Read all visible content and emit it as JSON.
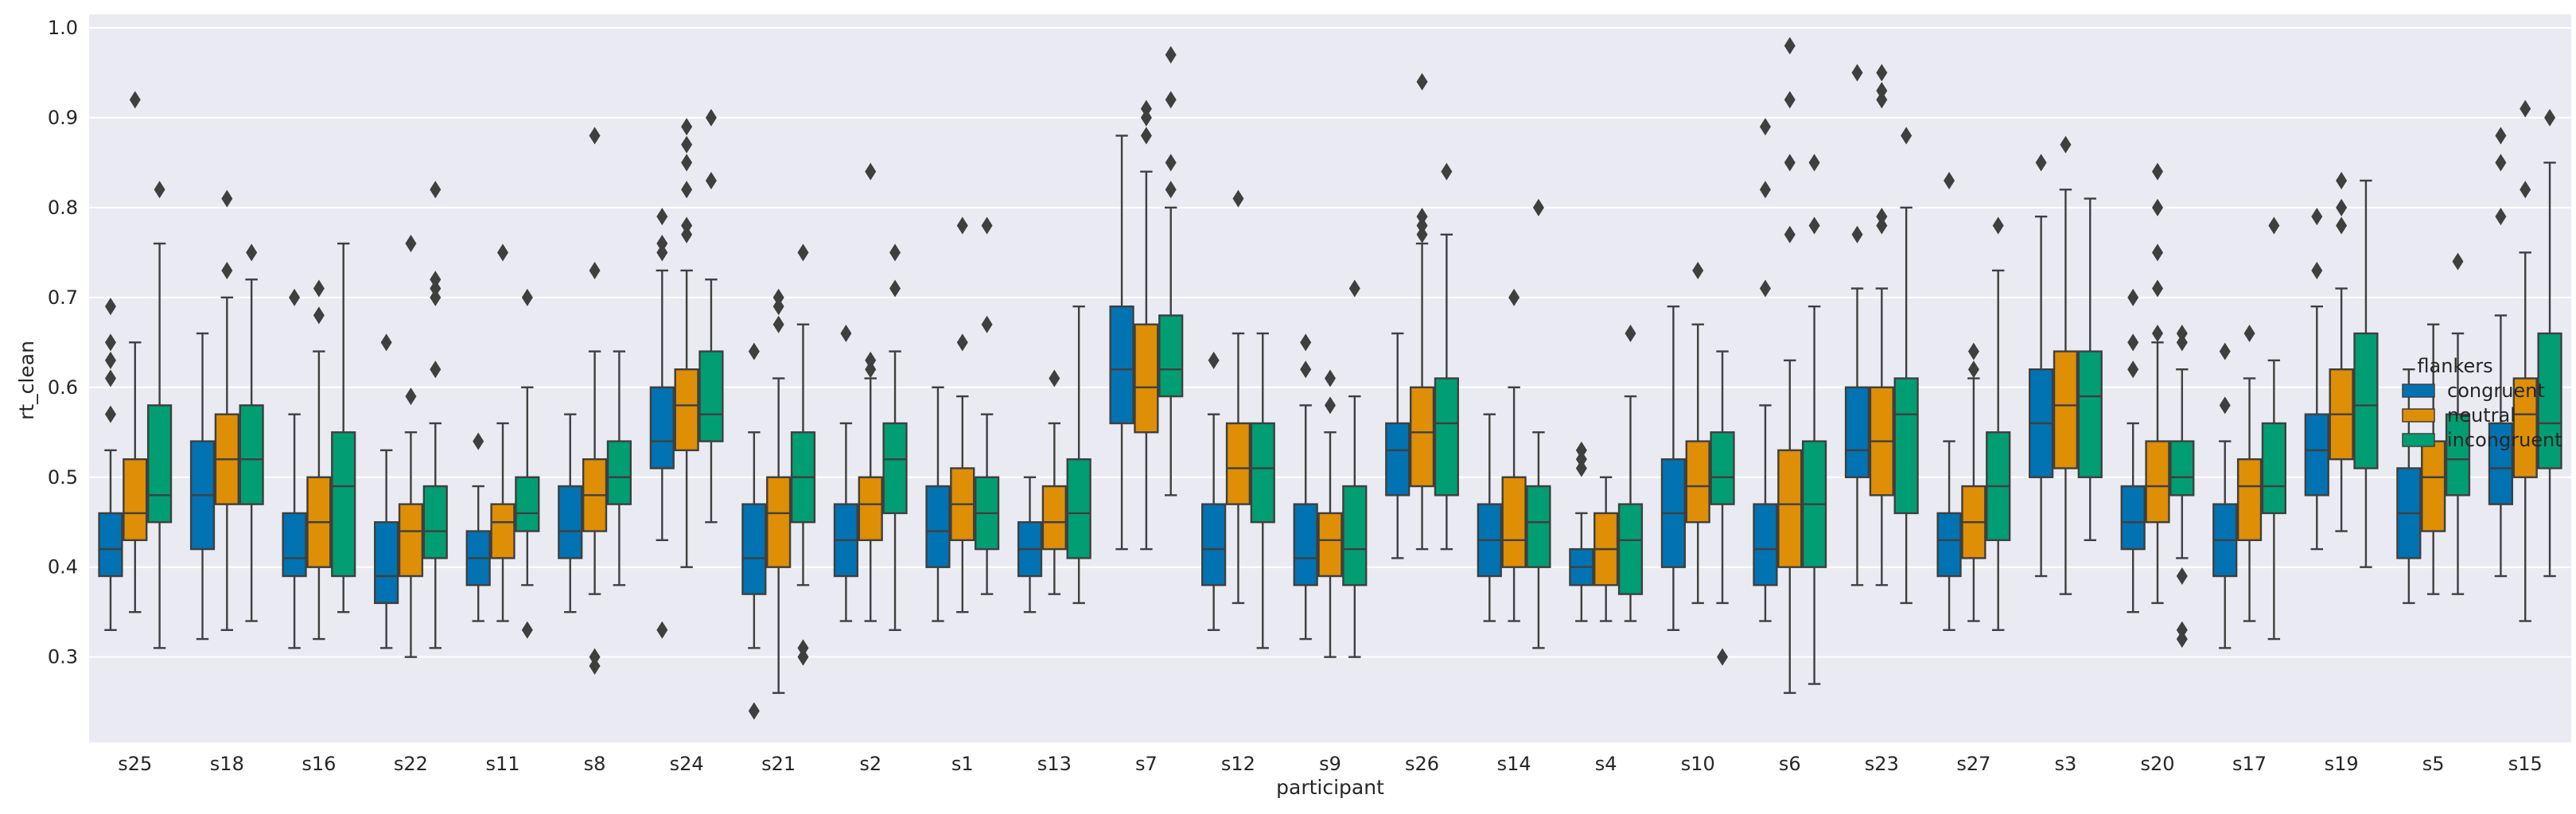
{
  "chart_data": {
    "type": "box",
    "xlabel": "participant",
    "ylabel": "rt_clean",
    "ylim": [
      0.205,
      1.015
    ],
    "yticks": [
      0.3,
      0.4,
      0.5,
      0.6,
      0.7,
      0.8,
      0.9,
      1.0
    ],
    "ytick_labels": [
      "0.3",
      "0.4",
      "0.5",
      "0.6",
      "0.7",
      "0.8",
      "0.9",
      "1.0"
    ],
    "grid": true,
    "legend": {
      "title": "flankers",
      "placement": "right",
      "entries": [
        "congruent",
        "neutral",
        "incongruent"
      ]
    },
    "series_colors": [
      "#0173b2",
      "#de8f05",
      "#029e73"
    ],
    "background": "#eaeaf2",
    "categories": [
      "s25",
      "s18",
      "s16",
      "s22",
      "s11",
      "s8",
      "s24",
      "s21",
      "s2",
      "s1",
      "s13",
      "s7",
      "s12",
      "s9",
      "s26",
      "s14",
      "s4",
      "s10",
      "s6",
      "s23",
      "s27",
      "s3",
      "s20",
      "s17",
      "s19",
      "s5",
      "s15"
    ],
    "boxes": [
      [
        {
          "q1": 0.39,
          "med": 0.42,
          "q3": 0.46,
          "wlo": 0.33,
          "whi": 0.53,
          "out": [
            0.57,
            0.61,
            0.63,
            0.65,
            0.69
          ]
        },
        {
          "q1": 0.43,
          "med": 0.46,
          "q3": 0.52,
          "wlo": 0.35,
          "whi": 0.65,
          "out": [
            0.92
          ]
        },
        {
          "q1": 0.45,
          "med": 0.48,
          "q3": 0.58,
          "wlo": 0.31,
          "whi": 0.76,
          "out": [
            0.82
          ]
        }
      ],
      [
        {
          "q1": 0.42,
          "med": 0.48,
          "q3": 0.54,
          "wlo": 0.32,
          "whi": 0.66,
          "out": []
        },
        {
          "q1": 0.47,
          "med": 0.52,
          "q3": 0.57,
          "wlo": 0.33,
          "whi": 0.7,
          "out": [
            0.73,
            0.81
          ]
        },
        {
          "q1": 0.47,
          "med": 0.52,
          "q3": 0.58,
          "wlo": 0.34,
          "whi": 0.72,
          "out": [
            0.75
          ]
        }
      ],
      [
        {
          "q1": 0.39,
          "med": 0.41,
          "q3": 0.46,
          "wlo": 0.31,
          "whi": 0.57,
          "out": [
            0.7
          ]
        },
        {
          "q1": 0.4,
          "med": 0.45,
          "q3": 0.5,
          "wlo": 0.32,
          "whi": 0.64,
          "out": [
            0.68,
            0.71
          ]
        },
        {
          "q1": 0.39,
          "med": 0.49,
          "q3": 0.55,
          "wlo": 0.35,
          "whi": 0.76,
          "out": []
        }
      ],
      [
        {
          "q1": 0.36,
          "med": 0.39,
          "q3": 0.45,
          "wlo": 0.31,
          "whi": 0.53,
          "out": [
            0.65
          ]
        },
        {
          "q1": 0.39,
          "med": 0.44,
          "q3": 0.47,
          "wlo": 0.3,
          "whi": 0.55,
          "out": [
            0.59,
            0.76
          ]
        },
        {
          "q1": 0.41,
          "med": 0.44,
          "q3": 0.49,
          "wlo": 0.31,
          "whi": 0.56,
          "out": [
            0.62,
            0.7,
            0.71,
            0.72,
            0.82
          ]
        }
      ],
      [
        {
          "q1": 0.38,
          "med": 0.41,
          "q3": 0.44,
          "wlo": 0.34,
          "whi": 0.49,
          "out": [
            0.54
          ]
        },
        {
          "q1": 0.41,
          "med": 0.45,
          "q3": 0.47,
          "wlo": 0.34,
          "whi": 0.56,
          "out": [
            0.75
          ]
        },
        {
          "q1": 0.44,
          "med": 0.46,
          "q3": 0.5,
          "wlo": 0.38,
          "whi": 0.6,
          "out": [
            0.33,
            0.7
          ]
        }
      ],
      [
        {
          "q1": 0.41,
          "med": 0.44,
          "q3": 0.49,
          "wlo": 0.35,
          "whi": 0.57,
          "out": []
        },
        {
          "q1": 0.44,
          "med": 0.48,
          "q3": 0.52,
          "wlo": 0.37,
          "whi": 0.64,
          "out": [
            0.29,
            0.3,
            0.73,
            0.88
          ]
        },
        {
          "q1": 0.47,
          "med": 0.5,
          "q3": 0.54,
          "wlo": 0.38,
          "whi": 0.64,
          "out": []
        }
      ],
      [
        {
          "q1": 0.51,
          "med": 0.54,
          "q3": 0.6,
          "wlo": 0.43,
          "whi": 0.73,
          "out": [
            0.33,
            0.75,
            0.76,
            0.79
          ]
        },
        {
          "q1": 0.53,
          "med": 0.58,
          "q3": 0.62,
          "wlo": 0.4,
          "whi": 0.73,
          "out": [
            0.77,
            0.78,
            0.82,
            0.85,
            0.87,
            0.89
          ]
        },
        {
          "q1": 0.54,
          "med": 0.57,
          "q3": 0.64,
          "wlo": 0.45,
          "whi": 0.72,
          "out": [
            0.83,
            0.9
          ]
        }
      ],
      [
        {
          "q1": 0.37,
          "med": 0.41,
          "q3": 0.47,
          "wlo": 0.31,
          "whi": 0.55,
          "out": [
            0.24,
            0.64
          ]
        },
        {
          "q1": 0.4,
          "med": 0.46,
          "q3": 0.5,
          "wlo": 0.26,
          "whi": 0.61,
          "out": [
            0.67,
            0.69,
            0.7
          ]
        },
        {
          "q1": 0.45,
          "med": 0.5,
          "q3": 0.55,
          "wlo": 0.38,
          "whi": 0.67,
          "out": [
            0.3,
            0.31,
            0.75
          ]
        }
      ],
      [
        {
          "q1": 0.39,
          "med": 0.43,
          "q3": 0.47,
          "wlo": 0.34,
          "whi": 0.56,
          "out": [
            0.66
          ]
        },
        {
          "q1": 0.43,
          "med": 0.47,
          "q3": 0.5,
          "wlo": 0.34,
          "whi": 0.61,
          "out": [
            0.62,
            0.63,
            0.84
          ]
        },
        {
          "q1": 0.46,
          "med": 0.52,
          "q3": 0.56,
          "wlo": 0.33,
          "whi": 0.64,
          "out": [
            0.71,
            0.75
          ]
        }
      ],
      [
        {
          "q1": 0.4,
          "med": 0.44,
          "q3": 0.49,
          "wlo": 0.34,
          "whi": 0.6,
          "out": []
        },
        {
          "q1": 0.43,
          "med": 0.47,
          "q3": 0.51,
          "wlo": 0.35,
          "whi": 0.59,
          "out": [
            0.65,
            0.78
          ]
        },
        {
          "q1": 0.42,
          "med": 0.46,
          "q3": 0.5,
          "wlo": 0.37,
          "whi": 0.57,
          "out": [
            0.67,
            0.78
          ]
        }
      ],
      [
        {
          "q1": 0.39,
          "med": 0.42,
          "q3": 0.45,
          "wlo": 0.35,
          "whi": 0.5,
          "out": []
        },
        {
          "q1": 0.42,
          "med": 0.45,
          "q3": 0.49,
          "wlo": 0.37,
          "whi": 0.56,
          "out": [
            0.61
          ]
        },
        {
          "q1": 0.41,
          "med": 0.46,
          "q3": 0.52,
          "wlo": 0.36,
          "whi": 0.69,
          "out": []
        }
      ],
      [
        {
          "q1": 0.56,
          "med": 0.62,
          "q3": 0.69,
          "wlo": 0.42,
          "whi": 0.88,
          "out": []
        },
        {
          "q1": 0.55,
          "med": 0.6,
          "q3": 0.67,
          "wlo": 0.42,
          "whi": 0.84,
          "out": [
            0.88,
            0.9,
            0.91
          ]
        },
        {
          "q1": 0.59,
          "med": 0.62,
          "q3": 0.68,
          "wlo": 0.48,
          "whi": 0.8,
          "out": [
            0.82,
            0.85,
            0.92,
            0.97
          ]
        }
      ],
      [
        {
          "q1": 0.38,
          "med": 0.42,
          "q3": 0.47,
          "wlo": 0.33,
          "whi": 0.57,
          "out": [
            0.63
          ]
        },
        {
          "q1": 0.47,
          "med": 0.51,
          "q3": 0.56,
          "wlo": 0.36,
          "whi": 0.66,
          "out": [
            0.81
          ]
        },
        {
          "q1": 0.45,
          "med": 0.51,
          "q3": 0.56,
          "wlo": 0.31,
          "whi": 0.66,
          "out": []
        }
      ],
      [
        {
          "q1": 0.38,
          "med": 0.41,
          "q3": 0.47,
          "wlo": 0.32,
          "whi": 0.58,
          "out": [
            0.62,
            0.65
          ]
        },
        {
          "q1": 0.39,
          "med": 0.43,
          "q3": 0.46,
          "wlo": 0.3,
          "whi": 0.55,
          "out": [
            0.58,
            0.61
          ]
        },
        {
          "q1": 0.38,
          "med": 0.42,
          "q3": 0.49,
          "wlo": 0.3,
          "whi": 0.59,
          "out": [
            0.71
          ]
        }
      ],
      [
        {
          "q1": 0.48,
          "med": 0.53,
          "q3": 0.56,
          "wlo": 0.41,
          "whi": 0.66,
          "out": []
        },
        {
          "q1": 0.49,
          "med": 0.55,
          "q3": 0.6,
          "wlo": 0.42,
          "whi": 0.76,
          "out": [
            0.77,
            0.78,
            0.79,
            0.94
          ]
        },
        {
          "q1": 0.48,
          "med": 0.56,
          "q3": 0.61,
          "wlo": 0.42,
          "whi": 0.77,
          "out": [
            0.84
          ]
        }
      ],
      [
        {
          "q1": 0.39,
          "med": 0.43,
          "q3": 0.47,
          "wlo": 0.34,
          "whi": 0.57,
          "out": []
        },
        {
          "q1": 0.4,
          "med": 0.43,
          "q3": 0.5,
          "wlo": 0.34,
          "whi": 0.6,
          "out": [
            0.7
          ]
        },
        {
          "q1": 0.4,
          "med": 0.45,
          "q3": 0.49,
          "wlo": 0.31,
          "whi": 0.55,
          "out": [
            0.8
          ]
        }
      ],
      [
        {
          "q1": 0.38,
          "med": 0.4,
          "q3": 0.42,
          "wlo": 0.34,
          "whi": 0.46,
          "out": [
            0.51,
            0.52,
            0.53
          ]
        },
        {
          "q1": 0.38,
          "med": 0.42,
          "q3": 0.46,
          "wlo": 0.34,
          "whi": 0.5,
          "out": []
        },
        {
          "q1": 0.37,
          "med": 0.43,
          "q3": 0.47,
          "wlo": 0.34,
          "whi": 0.59,
          "out": [
            0.66
          ]
        }
      ],
      [
        {
          "q1": 0.4,
          "med": 0.46,
          "q3": 0.52,
          "wlo": 0.33,
          "whi": 0.69,
          "out": []
        },
        {
          "q1": 0.45,
          "med": 0.49,
          "q3": 0.54,
          "wlo": 0.36,
          "whi": 0.67,
          "out": [
            0.73
          ]
        },
        {
          "q1": 0.47,
          "med": 0.5,
          "q3": 0.55,
          "wlo": 0.36,
          "whi": 0.64,
          "out": [
            0.3
          ]
        }
      ],
      [
        {
          "q1": 0.38,
          "med": 0.42,
          "q3": 0.47,
          "wlo": 0.34,
          "whi": 0.58,
          "out": [
            0.71,
            0.82,
            0.89
          ]
        },
        {
          "q1": 0.4,
          "med": 0.47,
          "q3": 0.53,
          "wlo": 0.26,
          "whi": 0.63,
          "out": [
            0.77,
            0.85,
            0.92,
            0.98
          ]
        },
        {
          "q1": 0.4,
          "med": 0.47,
          "q3": 0.54,
          "wlo": 0.27,
          "whi": 0.69,
          "out": [
            0.78,
            0.85
          ]
        }
      ],
      [
        {
          "q1": 0.5,
          "med": 0.53,
          "q3": 0.6,
          "wlo": 0.38,
          "whi": 0.71,
          "out": [
            0.77,
            0.95
          ]
        },
        {
          "q1": 0.48,
          "med": 0.54,
          "q3": 0.6,
          "wlo": 0.38,
          "whi": 0.71,
          "out": [
            0.78,
            0.79,
            0.92,
            0.93,
            0.95
          ]
        },
        {
          "q1": 0.46,
          "med": 0.57,
          "q3": 0.61,
          "wlo": 0.36,
          "whi": 0.8,
          "out": [
            0.88
          ]
        }
      ],
      [
        {
          "q1": 0.39,
          "med": 0.43,
          "q3": 0.46,
          "wlo": 0.33,
          "whi": 0.54,
          "out": [
            0.83
          ]
        },
        {
          "q1": 0.41,
          "med": 0.45,
          "q3": 0.49,
          "wlo": 0.34,
          "whi": 0.61,
          "out": [
            0.62,
            0.64
          ]
        },
        {
          "q1": 0.43,
          "med": 0.49,
          "q3": 0.55,
          "wlo": 0.33,
          "whi": 0.73,
          "out": [
            0.78
          ]
        }
      ],
      [
        {
          "q1": 0.5,
          "med": 0.56,
          "q3": 0.62,
          "wlo": 0.39,
          "whi": 0.79,
          "out": [
            0.85
          ]
        },
        {
          "q1": 0.51,
          "med": 0.58,
          "q3": 0.64,
          "wlo": 0.37,
          "whi": 0.82,
          "out": [
            0.87
          ]
        },
        {
          "q1": 0.5,
          "med": 0.59,
          "q3": 0.64,
          "wlo": 0.43,
          "whi": 0.81,
          "out": []
        }
      ],
      [
        {
          "q1": 0.42,
          "med": 0.45,
          "q3": 0.49,
          "wlo": 0.35,
          "whi": 0.56,
          "out": [
            0.62,
            0.65,
            0.7
          ]
        },
        {
          "q1": 0.45,
          "med": 0.49,
          "q3": 0.54,
          "wlo": 0.36,
          "whi": 0.65,
          "out": [
            0.66,
            0.71,
            0.75,
            0.8,
            0.84
          ]
        },
        {
          "q1": 0.48,
          "med": 0.5,
          "q3": 0.54,
          "wlo": 0.41,
          "whi": 0.62,
          "out": [
            0.32,
            0.33,
            0.39,
            0.65,
            0.66
          ]
        }
      ],
      [
        {
          "q1": 0.39,
          "med": 0.43,
          "q3": 0.47,
          "wlo": 0.31,
          "whi": 0.54,
          "out": [
            0.58,
            0.64
          ]
        },
        {
          "q1": 0.43,
          "med": 0.49,
          "q3": 0.52,
          "wlo": 0.34,
          "whi": 0.61,
          "out": [
            0.66
          ]
        },
        {
          "q1": 0.46,
          "med": 0.49,
          "q3": 0.56,
          "wlo": 0.32,
          "whi": 0.63,
          "out": [
            0.78
          ]
        }
      ],
      [
        {
          "q1": 0.48,
          "med": 0.53,
          "q3": 0.57,
          "wlo": 0.42,
          "whi": 0.69,
          "out": [
            0.73,
            0.79
          ]
        },
        {
          "q1": 0.52,
          "med": 0.57,
          "q3": 0.62,
          "wlo": 0.44,
          "whi": 0.71,
          "out": [
            0.78,
            0.8,
            0.83
          ]
        },
        {
          "q1": 0.51,
          "med": 0.58,
          "q3": 0.66,
          "wlo": 0.4,
          "whi": 0.83,
          "out": []
        }
      ],
      [
        {
          "q1": 0.41,
          "med": 0.46,
          "q3": 0.51,
          "wlo": 0.36,
          "whi": 0.62,
          "out": []
        },
        {
          "q1": 0.44,
          "med": 0.5,
          "q3": 0.54,
          "wlo": 0.37,
          "whi": 0.67,
          "out": []
        },
        {
          "q1": 0.48,
          "med": 0.52,
          "q3": 0.57,
          "wlo": 0.37,
          "whi": 0.66,
          "out": [
            0.74
          ]
        }
      ],
      [
        {
          "q1": 0.47,
          "med": 0.51,
          "q3": 0.56,
          "wlo": 0.39,
          "whi": 0.68,
          "out": [
            0.79,
            0.85,
            0.88
          ]
        },
        {
          "q1": 0.5,
          "med": 0.57,
          "q3": 0.61,
          "wlo": 0.34,
          "whi": 0.75,
          "out": [
            0.82,
            0.91
          ]
        },
        {
          "q1": 0.51,
          "med": 0.56,
          "q3": 0.66,
          "wlo": 0.39,
          "whi": 0.85,
          "out": [
            0.9
          ]
        }
      ]
    ]
  }
}
